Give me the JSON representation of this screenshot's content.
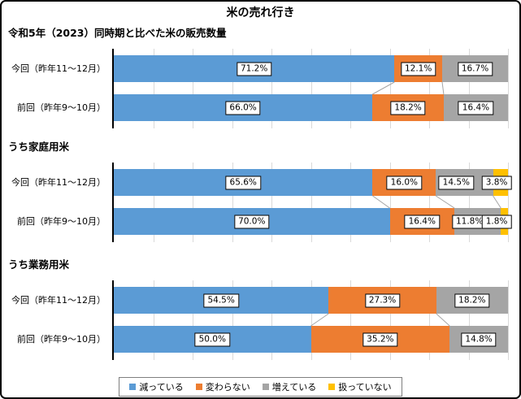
{
  "title": "米の売れ行き",
  "legend": {
    "items": [
      {
        "label": "減っている",
        "color": "#5B9BD5",
        "key": "decreasing"
      },
      {
        "label": "変わらない",
        "color": "#ED7D31",
        "key": "unchanged"
      },
      {
        "label": "増えている",
        "color": "#A5A5A5",
        "key": "increasing"
      },
      {
        "label": "扱っていない",
        "color": "#FFC000",
        "key": "not-handled"
      }
    ]
  },
  "chart_data": [
    {
      "type": "bar",
      "stacked": true,
      "orientation": "horizontal",
      "title": "令和5年（2023）同時期と比べた米の販売数量",
      "categories": [
        "今回（昨年11～12月）",
        "前回（昨年9～10月）"
      ],
      "unit": "%",
      "xlim": [
        0,
        100
      ],
      "grid": true,
      "series": [
        {
          "name": "減っている",
          "key": "decreasing",
          "color": "#5B9BD5",
          "values": [
            71.2,
            66.0
          ]
        },
        {
          "name": "変わらない",
          "key": "unchanged",
          "color": "#ED7D31",
          "values": [
            12.1,
            18.2
          ]
        },
        {
          "name": "増えている",
          "key": "increasing",
          "color": "#A5A5A5",
          "values": [
            16.7,
            16.4
          ]
        }
      ]
    },
    {
      "type": "bar",
      "stacked": true,
      "orientation": "horizontal",
      "title": "うち家庭用米",
      "categories": [
        "今回（昨年11～12月）",
        "前回（昨年9～10月）"
      ],
      "unit": "%",
      "xlim": [
        0,
        100
      ],
      "grid": true,
      "series": [
        {
          "name": "減っている",
          "key": "decreasing",
          "color": "#5B9BD5",
          "values": [
            65.6,
            70.0
          ]
        },
        {
          "name": "変わらない",
          "key": "unchanged",
          "color": "#ED7D31",
          "values": [
            16.0,
            16.4
          ]
        },
        {
          "name": "増えている",
          "key": "increasing",
          "color": "#A5A5A5",
          "values": [
            14.5,
            11.8
          ]
        },
        {
          "name": "扱っていない",
          "key": "not-handled",
          "color": "#FFC000",
          "values": [
            3.8,
            1.8
          ]
        }
      ]
    },
    {
      "type": "bar",
      "stacked": true,
      "orientation": "horizontal",
      "title": "うち業務用米",
      "categories": [
        "今回（昨年11～12月）",
        "前回（昨年9～10月）"
      ],
      "unit": "%",
      "xlim": [
        0,
        100
      ],
      "grid": true,
      "series": [
        {
          "name": "減っている",
          "key": "decreasing",
          "color": "#5B9BD5",
          "values": [
            54.5,
            50.0
          ]
        },
        {
          "name": "変わらない",
          "key": "unchanged",
          "color": "#ED7D31",
          "values": [
            27.3,
            35.2
          ]
        },
        {
          "name": "増えている",
          "key": "increasing",
          "color": "#A5A5A5",
          "values": [
            18.2,
            14.8
          ]
        }
      ]
    }
  ]
}
